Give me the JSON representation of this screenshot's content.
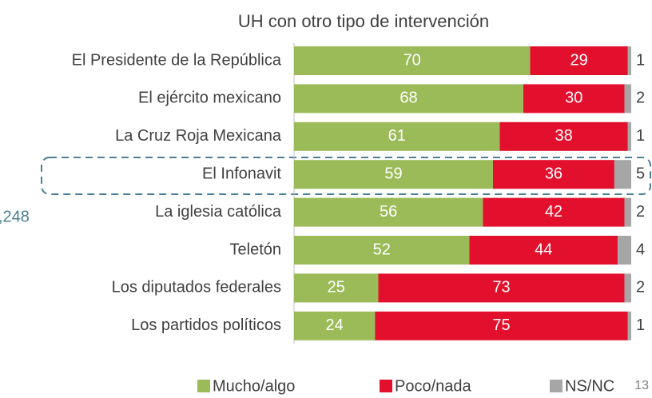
{
  "chart_data": {
    "type": "stacked_bar",
    "orientation": "horizontal",
    "title": "UH con otro tipo de intervención",
    "categories": [
      "El Presidente de la República",
      "El ejército mexicano",
      "La Cruz Roja Mexicana",
      "El Infonavit",
      "La iglesia católica",
      "Teletón",
      "Los diputados federales",
      "Los partidos políticos"
    ],
    "series": [
      {
        "name": "Mucho/algo",
        "color": "#9bbb59",
        "values": [
          70,
          68,
          61,
          59,
          56,
          52,
          25,
          24
        ]
      },
      {
        "name": "Poco/nada",
        "color": "#e3102d",
        "values": [
          29,
          30,
          38,
          36,
          42,
          44,
          73,
          75
        ]
      },
      {
        "name": "NS/NC",
        "color": "#a6a6a6",
        "values": [
          1,
          2,
          1,
          5,
          2,
          4,
          2,
          1
        ]
      }
    ],
    "xlim": [
      0,
      100
    ],
    "annotations": [
      ",248",
      "13"
    ]
  }
}
